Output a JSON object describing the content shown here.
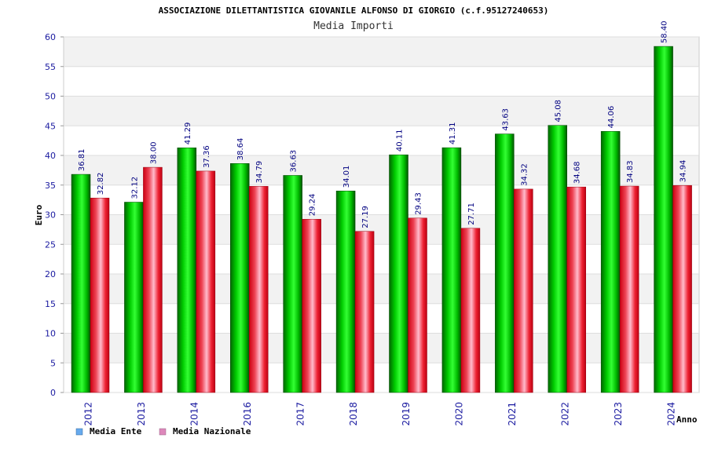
{
  "chart_data": {
    "type": "bar",
    "title": "ASSOCIAZIONE DILETTANTISTICA GIOVANILE ALFONSO DI GIORGIO (c.f.95127240653)",
    "subtitle": "Media Importi",
    "xlabel": "Anno",
    "ylabel": "Euro",
    "ylim": [
      0,
      60
    ],
    "yticks": [
      0,
      5,
      10,
      15,
      20,
      25,
      30,
      35,
      40,
      45,
      50,
      55,
      60
    ],
    "grid": true,
    "legend_position": "bottom-left",
    "categories": [
      "2012",
      "2013",
      "2014",
      "2016",
      "2017",
      "2018",
      "2019",
      "2020",
      "2021",
      "2022",
      "2023",
      "2024"
    ],
    "series": [
      {
        "name": "Media Ente",
        "color": "#00aa00",
        "legend_color": "#66aaee",
        "values": [
          36.81,
          32.12,
          41.29,
          38.64,
          36.63,
          34.01,
          40.11,
          41.31,
          43.63,
          45.08,
          44.06,
          58.4
        ],
        "labels": [
          "36.81",
          "32.12",
          "41.29",
          "38.64",
          "36.63",
          "34.01",
          "40.11",
          "41.31",
          "43.63",
          "45.08",
          "44.06",
          "58.40"
        ]
      },
      {
        "name": "Media Nazionale",
        "color": "#ee1122",
        "legend_color": "#dd88bb",
        "values": [
          32.82,
          38.0,
          37.36,
          34.79,
          29.24,
          27.19,
          29.43,
          27.71,
          34.32,
          34.68,
          34.83,
          34.94
        ],
        "labels": [
          "32.82",
          "38.00",
          "37.36",
          "34.79",
          "29.24",
          "27.19",
          "29.43",
          "27.71",
          "34.32",
          "34.68",
          "34.83",
          "34.94"
        ]
      }
    ]
  }
}
